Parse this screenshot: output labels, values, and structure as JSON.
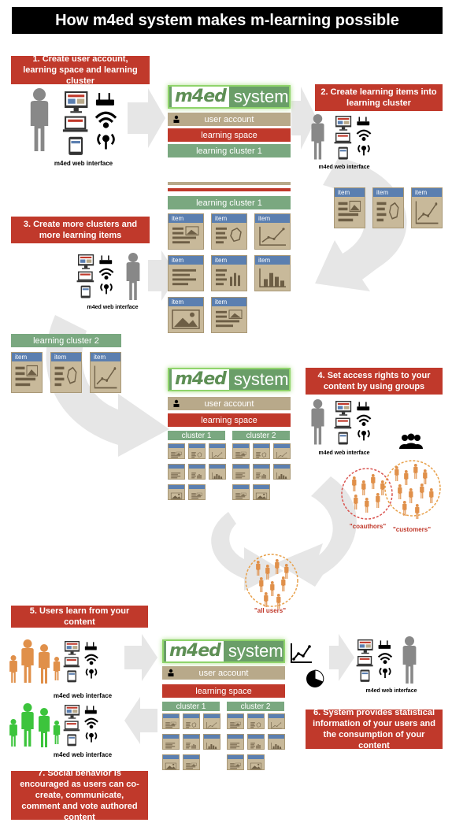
{
  "title": "How m4ed system makes m-learning possible",
  "logo": {
    "mark": "m4ed",
    "word": "system"
  },
  "interface_label": "m4ed web interface",
  "steps": {
    "s1": "1. Create user account, learning space and learning cluster",
    "s2": "2. Create learning items into learning cluster",
    "s3": "3. Create more clusters and more learning items",
    "s4": "4. Set access rights to your content by using groups",
    "s5": "5. Users learn from your content",
    "s6": "6. System provides statistical information of your users and the consumption of your content",
    "s7": "7. Social behavior is encouraged as users can co-create, communicate, comment and vote authored content"
  },
  "bars": {
    "user_account": "user account",
    "learning_space": "learning space",
    "learning_cluster_1": "learning cluster 1",
    "learning_cluster_2": "learning cluster 2",
    "cluster_1": "cluster 1",
    "cluster_2": "cluster 2"
  },
  "item_label": "item",
  "groups": {
    "coauthors": "\"coauthors\"",
    "customers": "\"customers\"",
    "all_users": "\"all users\""
  },
  "colors": {
    "red": "#c0392b",
    "green": "#7aa880",
    "tan": "#b8a98a",
    "blue": "#5b7fb0",
    "orange": "#e0904a",
    "arrow": "#e3e3e3"
  },
  "icons": [
    "person-icon",
    "desktop-icon",
    "laptop-icon",
    "tablet-icon",
    "phone-icon",
    "router-icon",
    "wifi-icon",
    "antenna-icon",
    "group-icon",
    "line-chart-icon",
    "pie-chart-icon"
  ]
}
